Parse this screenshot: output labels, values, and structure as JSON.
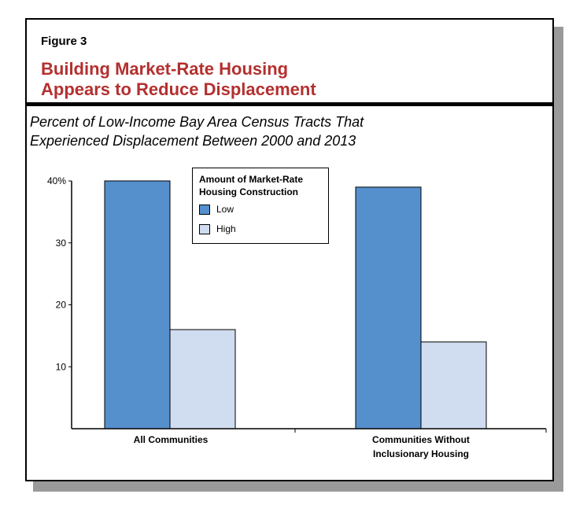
{
  "figure": {
    "label": "Figure 3",
    "title_line1": "Building Market-Rate Housing",
    "title_line2": "Appears to Reduce Displacement",
    "subtitle_line1": "Percent of Low-Income Bay Area Census Tracts That",
    "subtitle_line2": "Experienced Displacement Between 2000 and 2013"
  },
  "colors": {
    "title": "#b3302f",
    "low": "#5590cc",
    "high": "#d0dcef"
  },
  "chart_data": {
    "type": "bar",
    "title": "Percent of Low-Income Bay Area Census Tracts That Experienced Displacement Between 2000 and 2013",
    "categories": [
      [
        "All Communities"
      ],
      [
        "Communities Without",
        "Inclusionary Housing"
      ]
    ],
    "series": [
      {
        "name": "Low",
        "values": [
          40,
          39
        ]
      },
      {
        "name": "High",
        "values": [
          16,
          14
        ]
      }
    ],
    "ylim": [
      0,
      40
    ],
    "yticks": [
      {
        "value": 10,
        "label": "10"
      },
      {
        "value": 20,
        "label": "20"
      },
      {
        "value": 30,
        "label": "30"
      },
      {
        "value": 40,
        "label": "40%"
      }
    ],
    "grid": false,
    "legend": {
      "title_line1": "Amount of Market-Rate",
      "title_line2": "Housing Construction",
      "entries": [
        "Low",
        "High"
      ],
      "placement": "top-center"
    }
  }
}
